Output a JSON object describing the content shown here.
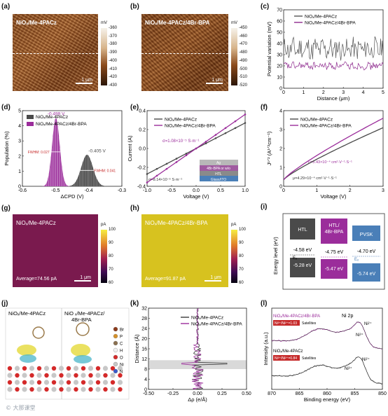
{
  "panels": {
    "a": {
      "label": "(a)",
      "title": "NiOₓ/Me-4PACz",
      "scale": "1 μm",
      "cb_unit": "mV",
      "cb_ticks": [
        "-360",
        "-370",
        "-380",
        "-390",
        "-400",
        "-410",
        "-420",
        "-430"
      ],
      "colors": [
        "#f6f2ea",
        "#2b1608"
      ]
    },
    "b": {
      "label": "(b)",
      "title": "NiOₓ/Me-4PACz/4Br-BPA",
      "scale": "1 μm",
      "cb_unit": "mV",
      "cb_ticks": [
        "-450",
        "-460",
        "-470",
        "-480",
        "-490",
        "-500",
        "-510",
        "-520"
      ],
      "colors": [
        "#f6f2ea",
        "#2b1608"
      ]
    },
    "g": {
      "label": "(g)",
      "title": "NiOₓ/Me-4PACz",
      "avg": "Average=74.56 pA",
      "scale": "1 μm",
      "cb_unit": "pA",
      "cb_ticks": [
        "100",
        "90",
        "80",
        "70",
        "60"
      ],
      "fill": "#7a1a4e"
    },
    "h": {
      "label": "(h)",
      "title": "NiOₓ/Me-4PACz/4Br-BPA",
      "avg": "Average=91.87 pA",
      "scale": "1 μm",
      "cb_unit": "pA",
      "cb_ticks": [
        "100",
        "90",
        "80",
        "70",
        "60"
      ],
      "fill": "#d7c21f"
    },
    "c": {
      "label": "(c)"
    },
    "d": {
      "label": "(d)"
    },
    "e": {
      "label": "(e)",
      "sigma1": "σ=1.08×10⁻⁵ S·m⁻¹",
      "sigma2": "σ=8.14×10⁻⁶ S·m⁻¹",
      "stack": [
        "Ag",
        "4Br-BPA or w/o",
        "HTL",
        "Glass/ITO"
      ]
    },
    "f": {
      "label": "(f)",
      "mu1": "μ=5.43×10⁻⁴ cm²·V⁻¹·S⁻¹",
      "mu2": "μ=4.29×10⁻⁴ cm²·V⁻¹·S⁻¹"
    },
    "i": {
      "label": "(i)",
      "ylabel": "Energy level (eV)",
      "boxes": [
        {
          "name": "HTL",
          "top": "-4.58 eV",
          "bottom": "-5.28 eV"
        },
        {
          "name": "HTL/\n4Br-BPA",
          "top": "-4.75 eV",
          "bottom": "-5.47 eV"
        },
        {
          "name": "PVSK",
          "top": "-4.70 eV",
          "bottom": "-5.74 eV"
        }
      ],
      "ef": "Eₒ"
    },
    "j": {
      "label": "(j)",
      "left_title": "NiOₓ/Me-4PACz",
      "right_title": "NiOₓ/Me-4PACz/\n4Br-BPA",
      "legend": [
        "Br",
        "P",
        "C",
        "H",
        "O",
        "Ni",
        "N"
      ]
    },
    "k": {
      "label": "(k)"
    },
    "l": {
      "label": "(l)",
      "top_title": "NiOₓ/Me-4PACz/4Br-BPA",
      "top_ratio": "Ni³⁺/Ni²⁺=1.03",
      "bottom_title": "NiOₓ/Me-4PACz",
      "bottom_ratio": "Ni³⁺/Ni²⁺=0.84",
      "ni2p": "Ni 2p",
      "sat": "Satellites",
      "ni3": "Ni³⁺",
      "ni2": "Ni²⁺"
    }
  },
  "watermark": "© 大那课堂",
  "chart_data": [
    {
      "type": "line",
      "title": "",
      "xlabel": "Distance (μm)",
      "ylabel": "Potential variation (mV)",
      "xlim": [
        0,
        5
      ],
      "ylim": [
        0,
        70
      ],
      "xticks": [
        0,
        1,
        2,
        3,
        4,
        5
      ],
      "yticks": [
        0,
        10,
        20,
        30,
        40,
        50,
        60,
        70
      ],
      "series": [
        {
          "name": "NiOₓ/Me-4PACz",
          "color": "#555555",
          "baseline": 35,
          "amp": 9
        },
        {
          "name": "NiOₓ/Me-4PACz/4Br-BPA",
          "color": "#8e2a8e",
          "baseline": 20,
          "amp": 3
        }
      ],
      "legend": "top-right"
    },
    {
      "type": "area",
      "title": "",
      "xlabel": "ΔCPD (V)",
      "ylabel": "Population (%)",
      "xlim": [
        -0.6,
        -0.3
      ],
      "ylim": [
        0,
        5
      ],
      "xticks": [
        -0.6,
        -0.5,
        -0.4,
        -0.3
      ],
      "yticks": [
        0,
        1,
        2,
        3,
        4,
        5
      ],
      "series": [
        {
          "name": "NiOₓ/Me-4PACz",
          "color": "#4a4a4a",
          "center": -0.405,
          "fwhm": 0.041,
          "peak": 2.1,
          "peak_label": "-0.405 V",
          "fwhm_label": "FWHM: 0.041"
        },
        {
          "name": "NiOₓ/Me-4PACz/4Br-BPA",
          "color": "#9b2d9b",
          "center": -0.499,
          "fwhm": 0.027,
          "peak": 4.55,
          "peak_label": "-0.499 V",
          "fwhm_label": "FWHM: 0.027"
        }
      ],
      "legend": "top-left"
    },
    {
      "type": "line",
      "title": "",
      "xlabel": "Voltage (V)",
      "ylabel": "Current (A)",
      "xlim": [
        -1.0,
        1.0
      ],
      "ylim": [
        -0.4,
        0.4
      ],
      "xticks": [
        -1.0,
        -0.5,
        0.0,
        0.5,
        1.0
      ],
      "yticks": [
        -0.4,
        -0.2,
        0.0,
        0.2,
        0.4
      ],
      "series": [
        {
          "name": "NiOₓ/Me-4PACz",
          "color": "#4a4a4a",
          "slope": 0.27
        },
        {
          "name": "NiOₓ/Me-4PACz/4Br-BPA",
          "color": "#9b2d9b",
          "slope": 0.36
        }
      ],
      "legend": "top-left"
    },
    {
      "type": "line",
      "title": "",
      "xlabel": "Voltage (V)",
      "ylabel": "J¹ᐟ² (A¹ᐟ²cm⁻¹)",
      "xlim": [
        0,
        3
      ],
      "ylim": [
        0,
        4
      ],
      "xticks": [
        0,
        1,
        2,
        3
      ],
      "yticks": [
        0,
        1,
        2,
        3,
        4
      ],
      "series": [
        {
          "name": "NiOₓ/Me-4PACz",
          "color": "#4a4a4a",
          "end": 3.1
        },
        {
          "name": "NiOₓ/Me-4PACz/4Br-BPA",
          "color": "#9b2d9b",
          "end": 3.6
        }
      ],
      "legend": "top-left"
    },
    {
      "type": "line",
      "title": "",
      "xlabel": "Δρ (e/Å)",
      "ylabel": "Distance (Å)",
      "xlim": [
        -0.5,
        0.5
      ],
      "ylim": [
        0,
        32
      ],
      "xticks": [
        -0.5,
        -0.25,
        0.0,
        0.25,
        0.5
      ],
      "yticks": [
        0,
        4,
        8,
        12,
        16,
        20,
        24,
        28,
        32
      ],
      "series": [
        {
          "name": "NiOₓ/Me-4PACz",
          "color": "#3a3a3a"
        },
        {
          "name": "NiOₓ/Me-4PACz/4Br-BPA",
          "color": "#9b2d9b"
        }
      ],
      "legend": "top-right"
    },
    {
      "type": "line",
      "title": "",
      "xlabel": "Binding energy (eV)",
      "ylabel": "Intensity (a.u.)",
      "xlim": [
        870,
        850
      ],
      "xticks": [
        870,
        865,
        860,
        855,
        850
      ],
      "series": [
        {
          "name": "NiOₓ/Me-4PACz/4Br-BPA",
          "color": "#9b2d9b"
        },
        {
          "name": "NiOₓ/Me-4PACz",
          "color": "#4a4a4a"
        }
      ]
    }
  ]
}
